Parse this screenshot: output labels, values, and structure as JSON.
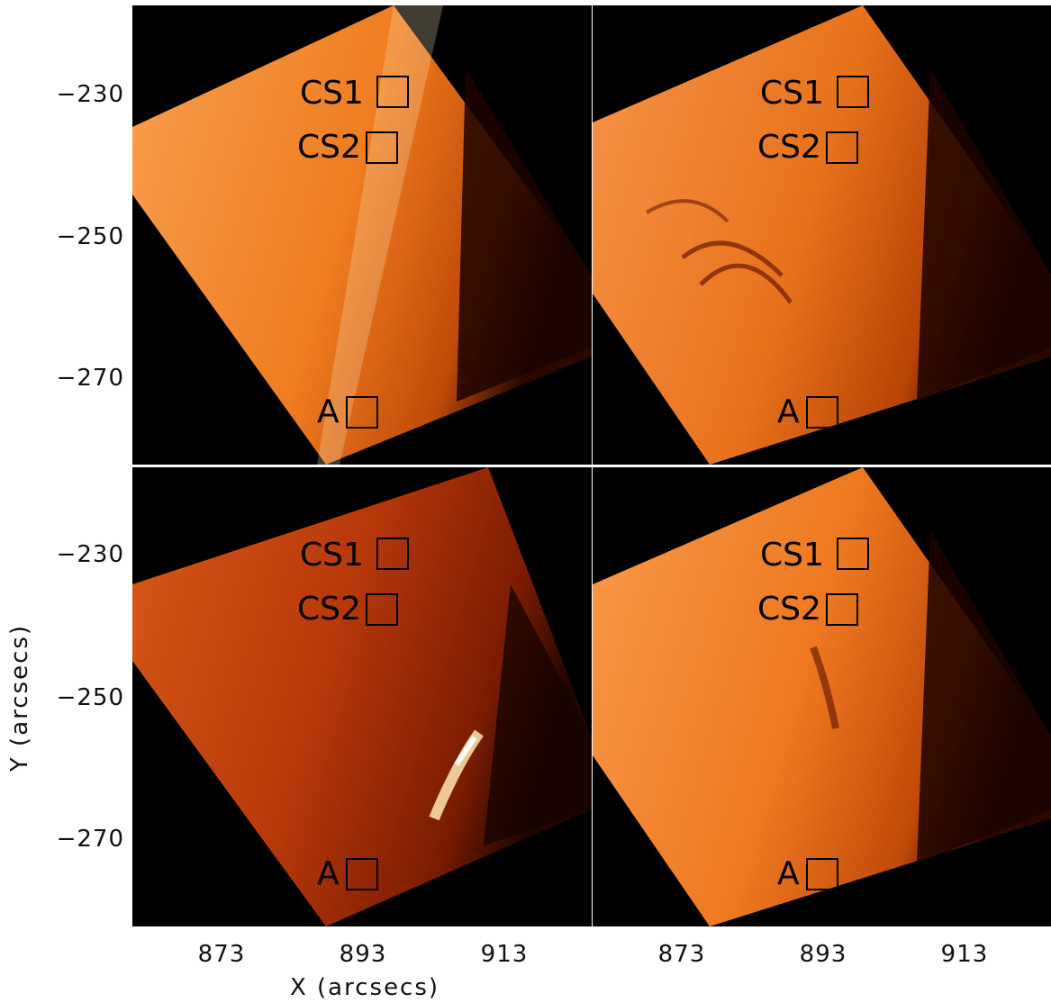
{
  "axes": {
    "y_title": "Y (arcsecs)",
    "x_title": "X (arcsecs)",
    "y_ticks_top": [
      "−230",
      "−250",
      "−270"
    ],
    "y_ticks_bottom": [
      "−230",
      "−250",
      "−270"
    ],
    "x_ticks_left": [
      "873",
      "893",
      "913"
    ],
    "x_ticks_right": [
      "873",
      "893",
      "913"
    ]
  },
  "panels": [
    {
      "id": "top-left",
      "tint": "#f07e20",
      "labels": {
        "cs1": "CS1",
        "cs2": "CS2",
        "a": "A"
      }
    },
    {
      "id": "top-right",
      "tint": "#ee7a1e",
      "labels": {
        "cs1": "CS1",
        "cs2": "CS2",
        "a": "A"
      }
    },
    {
      "id": "bottom-left",
      "tint": "#c9400c",
      "labels": {
        "cs1": "CS1",
        "cs2": "CS2",
        "a": "A"
      }
    },
    {
      "id": "bottom-right",
      "tint": "#f07c20",
      "labels": {
        "cs1": "CS1",
        "cs2": "CS2",
        "a": "A"
      }
    }
  ]
}
